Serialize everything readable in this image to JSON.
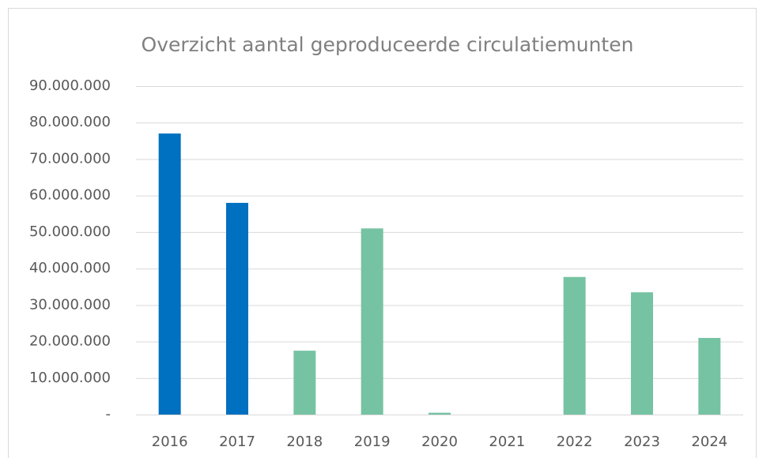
{
  "chart_data": {
    "type": "bar",
    "title": "Overzicht aantal geproduceerde circulatiemunten",
    "categories": [
      "2016",
      "2017",
      "2018",
      "2019",
      "2020",
      "2021",
      "2022",
      "2023",
      "2024"
    ],
    "values": [
      77000000,
      58000000,
      17500000,
      51000000,
      500000,
      0,
      37700000,
      33500000,
      21000000
    ],
    "colors": [
      "#0070c0",
      "#0070c0",
      "#76c3a3",
      "#76c3a3",
      "#76c3a3",
      "#76c3a3",
      "#76c3a3",
      "#76c3a3",
      "#76c3a3"
    ],
    "ylim": [
      0,
      90000000
    ],
    "yticks": [
      {
        "value": 0,
        "label": "-"
      },
      {
        "value": 10000000,
        "label": "10.000.000"
      },
      {
        "value": 20000000,
        "label": "20.000.000"
      },
      {
        "value": 30000000,
        "label": "30.000.000"
      },
      {
        "value": 40000000,
        "label": "40.000.000"
      },
      {
        "value": 50000000,
        "label": "50.000.000"
      },
      {
        "value": 60000000,
        "label": "60.000.000"
      },
      {
        "value": 70000000,
        "label": "70.000.000"
      },
      {
        "value": 80000000,
        "label": "80.000.000"
      },
      {
        "value": 90000000,
        "label": "90.000.000"
      }
    ],
    "grid": true
  }
}
